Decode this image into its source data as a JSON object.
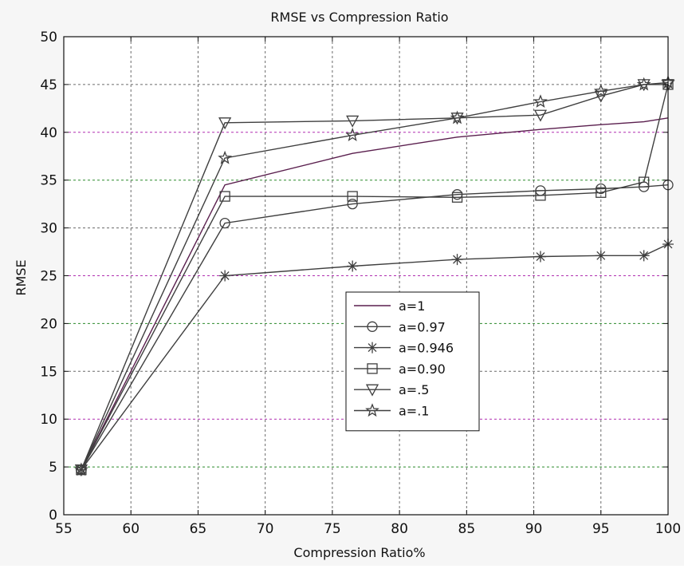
{
  "chart_data": {
    "type": "line",
    "title": "RMSE vs Compression Ratio",
    "xlabel": "Compression Ratio%",
    "ylabel": "RMSE",
    "xlim": [
      55,
      100
    ],
    "ylim": [
      0,
      50
    ],
    "xticks": [
      55,
      60,
      65,
      70,
      75,
      80,
      85,
      90,
      95,
      100
    ],
    "yticks": [
      0,
      5,
      10,
      15,
      20,
      25,
      30,
      35,
      40,
      45,
      50
    ],
    "grid": true,
    "legend_position": "center-right",
    "series": [
      {
        "name": "a=1",
        "marker": "none",
        "color": "#5a1f4e",
        "x": [
          56.3,
          67.0,
          76.5,
          84.3,
          90.5,
          95.0,
          98.2,
          100.0
        ],
        "y": [
          4.7,
          34.5,
          37.8,
          39.5,
          40.3,
          40.8,
          41.1,
          41.5
        ]
      },
      {
        "name": "a=0.97",
        "marker": "circle",
        "color": "#3f3f3f",
        "x": [
          56.3,
          67.0,
          76.5,
          84.3,
          90.5,
          95.0,
          98.2,
          100.0
        ],
        "y": [
          4.7,
          30.5,
          32.5,
          33.5,
          33.9,
          34.1,
          34.3,
          34.5
        ]
      },
      {
        "name": "a=0.946",
        "marker": "asterisk",
        "color": "#3f3f3f",
        "x": [
          56.3,
          67.0,
          76.5,
          84.3,
          90.5,
          95.0,
          98.2,
          100.0
        ],
        "y": [
          4.7,
          25.0,
          26.0,
          26.7,
          27.0,
          27.1,
          27.1,
          28.3
        ]
      },
      {
        "name": "a=0.90",
        "marker": "square",
        "color": "#3f3f3f",
        "x": [
          56.3,
          67.0,
          76.5,
          84.3,
          90.5,
          95.0,
          98.2,
          100.0
        ],
        "y": [
          4.7,
          33.3,
          33.3,
          33.2,
          33.4,
          33.7,
          34.8,
          45.0
        ]
      },
      {
        "name": "a=.5",
        "marker": "triangle-down",
        "color": "#3f3f3f",
        "x": [
          56.3,
          67.0,
          76.5,
          84.3,
          90.5,
          95.0,
          98.2,
          100.0
        ],
        "y": [
          4.7,
          41.0,
          41.2,
          41.5,
          41.8,
          43.8,
          45.0,
          45.0
        ]
      },
      {
        "name": "a=.1",
        "marker": "star",
        "color": "#3f3f3f",
        "x": [
          56.3,
          67.0,
          76.5,
          84.3,
          90.5,
          95.0,
          98.2,
          100.0
        ],
        "y": [
          4.7,
          37.3,
          39.7,
          41.5,
          43.2,
          44.3,
          45.0,
          45.2
        ]
      }
    ]
  },
  "colors": {
    "background": "#f6f6f6",
    "axes_background": "#ffffff",
    "grid_colors": [
      "#6a6a6a",
      "#2b8a2b",
      "#b02fb0"
    ]
  }
}
